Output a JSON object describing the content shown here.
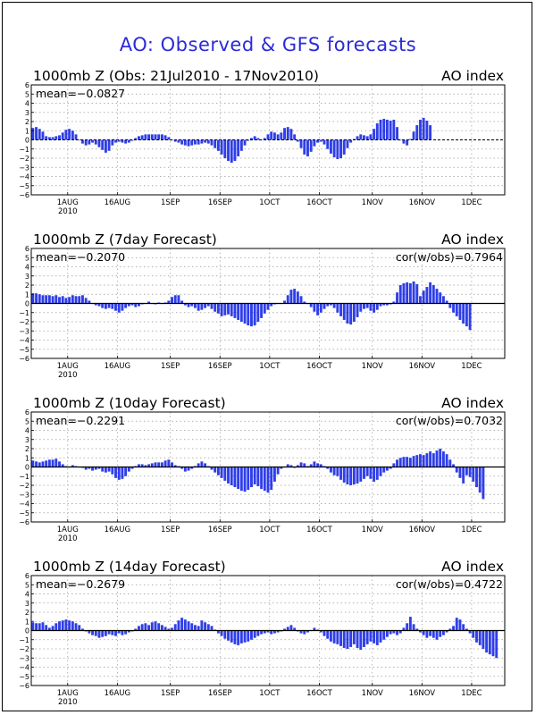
{
  "main_title": "AO: Observed & GFS forecasts",
  "colors": {
    "bar": "#2f3ee8",
    "axis": "#000000",
    "grid": "#9a9a9a",
    "title": "#2b2bd9"
  },
  "chart_data": [
    {
      "type": "bar",
      "title": "1000mb Z (Obs: 21Jul2010 - 17Nov2010)",
      "subtitle_right": "AO index",
      "stat_label": "mean=-0.0827",
      "corr_label": "",
      "ylim": [
        -6,
        6
      ],
      "yticks": [
        "6",
        "5",
        "4",
        "3",
        "2",
        "1",
        "0",
        "-1",
        "-2",
        "-3",
        "-4",
        "-5",
        "-6"
      ],
      "xticks": [
        "1AUG",
        "16AUG",
        "1SEP",
        "16SEP",
        "1OCT",
        "16OCT",
        "1NOV",
        "16NOV",
        "1DEC"
      ],
      "xtick_days": [
        11,
        26,
        42,
        57,
        72,
        87,
        103,
        118,
        133
      ],
      "year_label": "2010",
      "start_date": "21Jul2010",
      "start_day": 0,
      "grid": true,
      "values": [
        1.3,
        1.4,
        1.2,
        0.9,
        0.4,
        0.3,
        0.3,
        0.4,
        0.5,
        0.8,
        1.1,
        1.2,
        1.0,
        0.6,
        0.0,
        -0.4,
        -0.6,
        -0.5,
        -0.3,
        -0.5,
        -0.8,
        -1.1,
        -1.4,
        -1.2,
        -0.6,
        -0.3,
        -0.2,
        -0.3,
        -0.4,
        -0.3,
        -0.1,
        0.2,
        0.4,
        0.5,
        0.6,
        0.6,
        0.6,
        0.6,
        0.6,
        0.6,
        0.5,
        0.3,
        0.0,
        -0.2,
        -0.3,
        -0.5,
        -0.6,
        -0.7,
        -0.6,
        -0.5,
        -0.5,
        -0.4,
        -0.3,
        -0.4,
        -0.6,
        -0.9,
        -1.2,
        -1.6,
        -2.0,
        -2.3,
        -2.5,
        -2.3,
        -1.8,
        -1.2,
        -0.6,
        -0.1,
        0.2,
        0.4,
        0.2,
        0.0,
        0.2,
        0.6,
        0.9,
        0.8,
        0.6,
        0.8,
        1.3,
        1.4,
        1.2,
        0.6,
        -0.2,
        -0.9,
        -1.6,
        -1.8,
        -1.3,
        -0.7,
        -0.3,
        -0.2,
        -0.5,
        -1.0,
        -1.5,
        -1.9,
        -2.1,
        -2.0,
        -1.6,
        -0.9,
        -0.3,
        0.1,
        0.4,
        0.6,
        0.5,
        0.4,
        0.6,
        1.2,
        1.8,
        2.2,
        2.3,
        2.2,
        2.1,
        2.2,
        1.4,
        0.0,
        -0.4,
        -0.6,
        0.1,
        0.9,
        1.6,
        2.2,
        2.4,
        2.1,
        1.6
      ]
    },
    {
      "type": "bar",
      "title": "1000mb Z (7day Forecast)",
      "subtitle_right": "AO index",
      "stat_label": "mean=-0.2070",
      "corr_label": "cor(w/obs)=0.7964",
      "ylim": [
        -6,
        6
      ],
      "yticks": [
        "6",
        "5",
        "4",
        "3",
        "2",
        "1",
        "0",
        "-1",
        "-2",
        "-3",
        "-4",
        "-5",
        "-6"
      ],
      "xticks": [
        "1AUG",
        "16AUG",
        "1SEP",
        "16SEP",
        "1OCT",
        "16OCT",
        "1NOV",
        "16NOV",
        "1DEC"
      ],
      "xtick_days": [
        11,
        26,
        42,
        57,
        72,
        87,
        103,
        118,
        133
      ],
      "year_label": "2010",
      "start_date": "21Jul2010",
      "start_day": 0,
      "grid": true,
      "values": [
        1.1,
        1.1,
        1.0,
        0.9,
        0.9,
        0.9,
        0.8,
        0.9,
        0.7,
        0.8,
        0.6,
        0.7,
        0.9,
        0.8,
        0.8,
        0.9,
        0.6,
        0.3,
        0.0,
        -0.2,
        -0.3,
        -0.5,
        -0.6,
        -0.5,
        -0.6,
        -0.8,
        -1.0,
        -0.8,
        -0.5,
        -0.3,
        -0.2,
        -0.4,
        -0.3,
        -0.1,
        0.0,
        0.2,
        0.0,
        -0.1,
        0.1,
        0.0,
        0.1,
        0.3,
        0.7,
        0.9,
        0.9,
        0.3,
        -0.2,
        -0.4,
        -0.3,
        -0.5,
        -0.8,
        -0.7,
        -0.5,
        -0.3,
        -0.6,
        -0.9,
        -1.1,
        -1.4,
        -1.3,
        -1.2,
        -1.4,
        -1.6,
        -1.8,
        -2.0,
        -2.2,
        -2.4,
        -2.5,
        -2.4,
        -2.0,
        -1.6,
        -1.1,
        -0.7,
        -0.3,
        -0.1,
        0.0,
        0.0,
        0.3,
        0.9,
        1.5,
        1.6,
        1.3,
        0.8,
        0.2,
        0.0,
        -0.4,
        -0.9,
        -1.3,
        -1.0,
        -0.6,
        -0.3,
        -0.2,
        -0.5,
        -1.0,
        -1.4,
        -1.8,
        -2.2,
        -2.3,
        -2.0,
        -1.5,
        -0.9,
        -0.6,
        -0.5,
        -0.8,
        -1.0,
        -0.7,
        -0.3,
        -0.2,
        -0.2,
        -0.1,
        0.2,
        1.2,
        2.0,
        2.2,
        2.3,
        2.2,
        2.4,
        2.1,
        0.8,
        1.4,
        1.8,
        2.3,
        2.0,
        1.6,
        1.2,
        0.8,
        0.3,
        -0.5,
        -1.0,
        -1.4,
        -1.8,
        -2.2,
        -2.5,
        -2.9
      ]
    },
    {
      "type": "bar",
      "title": "1000mb Z (10day Forecast)",
      "subtitle_right": "AO index",
      "stat_label": "mean=-0.2291",
      "corr_label": "cor(w/obs)=0.7032",
      "ylim": [
        -6,
        6
      ],
      "yticks": [
        "6",
        "5",
        "4",
        "3",
        "2",
        "1",
        "0",
        "-1",
        "-2",
        "-3",
        "-4",
        "-5",
        "-6"
      ],
      "xticks": [
        "1AUG",
        "16AUG",
        "1SEP",
        "16SEP",
        "1OCT",
        "16OCT",
        "1NOV",
        "16NOV",
        "1DEC"
      ],
      "xtick_days": [
        11,
        26,
        42,
        57,
        72,
        87,
        103,
        118,
        133
      ],
      "year_label": "2010",
      "start_date": "21Jul2010",
      "start_day": 0,
      "grid": true,
      "values": [
        0.7,
        0.6,
        0.5,
        0.6,
        0.7,
        0.8,
        0.8,
        0.9,
        0.6,
        0.3,
        0.1,
        0.0,
        0.2,
        0.1,
        0.0,
        -0.1,
        -0.3,
        -0.2,
        -0.4,
        -0.3,
        -0.2,
        -0.5,
        -0.6,
        -0.5,
        -0.8,
        -1.2,
        -1.4,
        -1.3,
        -1.0,
        -0.5,
        -0.2,
        0.1,
        0.3,
        0.3,
        0.2,
        0.3,
        0.4,
        0.5,
        0.5,
        0.5,
        0.7,
        0.8,
        0.5,
        0.2,
        0.1,
        -0.2,
        -0.5,
        -0.4,
        -0.2,
        0.1,
        0.4,
        0.6,
        0.4,
        0.1,
        -0.3,
        -0.6,
        -0.9,
        -1.2,
        -1.5,
        -1.8,
        -2.0,
        -2.2,
        -2.4,
        -2.6,
        -2.7,
        -2.5,
        -2.2,
        -1.9,
        -2.1,
        -2.4,
        -2.6,
        -2.8,
        -2.5,
        -1.6,
        -0.8,
        -0.2,
        0.0,
        0.3,
        0.2,
        -0.1,
        0.2,
        0.5,
        0.4,
        0.1,
        0.3,
        0.6,
        0.4,
        0.3,
        0.1,
        -0.2,
        -0.6,
        -0.9,
        -1.0,
        -1.4,
        -1.7,
        -1.9,
        -2.0,
        -1.9,
        -1.8,
        -1.6,
        -1.3,
        -1.0,
        -1.3,
        -1.6,
        -1.4,
        -1.0,
        -0.6,
        -0.4,
        -0.2,
        0.4,
        0.8,
        1.0,
        1.1,
        1.1,
        1.0,
        1.2,
        1.3,
        1.4,
        1.3,
        1.5,
        1.7,
        1.5,
        1.8,
        2.0,
        1.7,
        1.4,
        0.8,
        0.3,
        -0.6,
        -1.2,
        -1.8,
        -0.9,
        -1.1,
        -1.6,
        -2.2,
        -2.8,
        -3.5
      ]
    },
    {
      "type": "bar",
      "title": "1000mb Z (14day Forecast)",
      "subtitle_right": "AO index",
      "stat_label": "mean=-0.2679",
      "corr_label": "cor(w/obs)=0.4722",
      "ylim": [
        -6,
        6
      ],
      "yticks": [
        "6",
        "5",
        "4",
        "3",
        "2",
        "1",
        "0",
        "-1",
        "-2",
        "-3",
        "-4",
        "-5",
        "-6"
      ],
      "xticks": [
        "1AUG",
        "16AUG",
        "1SEP",
        "16SEP",
        "1OCT",
        "16OCT",
        "1NOV",
        "16NOV",
        "1DEC"
      ],
      "xtick_days": [
        11,
        26,
        42,
        57,
        72,
        87,
        103,
        118,
        133
      ],
      "year_label": "2010",
      "start_date": "21Jul2010",
      "start_day": 0,
      "grid": true,
      "values": [
        0.9,
        0.8,
        0.8,
        0.9,
        0.6,
        0.3,
        0.5,
        0.8,
        1.0,
        1.1,
        1.2,
        1.1,
        1.0,
        0.8,
        0.6,
        0.2,
        -0.1,
        -0.3,
        -0.5,
        -0.6,
        -0.8,
        -0.7,
        -0.6,
        -0.4,
        -0.5,
        -0.6,
        -0.3,
        -0.5,
        -0.4,
        -0.2,
        -0.1,
        0.2,
        0.5,
        0.7,
        0.8,
        0.6,
        0.9,
        1.0,
        0.8,
        0.6,
        0.4,
        0.2,
        0.3,
        0.7,
        1.1,
        1.4,
        1.2,
        1.0,
        0.8,
        0.6,
        0.5,
        1.1,
        0.9,
        0.7,
        0.5,
        0.1,
        -0.3,
        -0.6,
        -0.9,
        -1.1,
        -1.3,
        -1.5,
        -1.6,
        -1.4,
        -1.3,
        -1.2,
        -1.0,
        -0.8,
        -0.6,
        -0.4,
        -0.3,
        -0.2,
        -0.4,
        -0.3,
        -0.2,
        -0.1,
        0.2,
        0.4,
        0.6,
        0.3,
        -0.1,
        -0.3,
        -0.4,
        -0.2,
        0.0,
        0.3,
        0.1,
        -0.2,
        -0.6,
        -0.9,
        -1.2,
        -1.4,
        -1.5,
        -1.7,
        -1.9,
        -2.0,
        -1.8,
        -1.5,
        -1.9,
        -2.1,
        -1.8,
        -1.5,
        -1.2,
        -1.4,
        -1.6,
        -1.3,
        -1.0,
        -0.7,
        -0.4,
        -0.3,
        -0.5,
        -0.3,
        0.3,
        0.8,
        1.5,
        0.7,
        0.2,
        -0.2,
        -0.5,
        -0.8,
        -0.6,
        -0.8,
        -1.0,
        -0.7,
        -0.5,
        -0.2,
        0.2,
        0.5,
        1.4,
        1.2,
        0.7,
        0.2,
        -0.3,
        -0.8,
        -1.3,
        -1.6,
        -2.0,
        -2.4,
        -2.6,
        -2.8,
        -3.0
      ]
    }
  ]
}
